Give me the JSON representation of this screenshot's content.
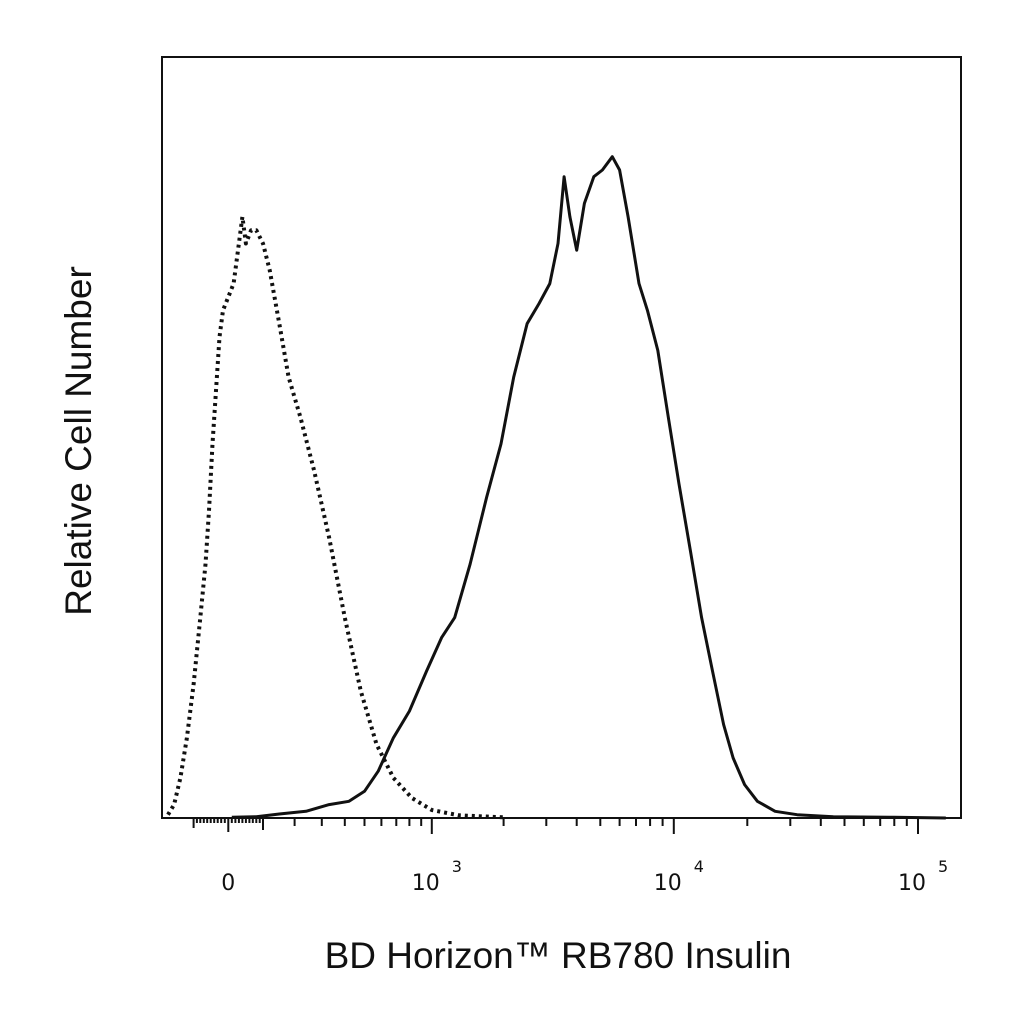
{
  "chart_data": {
    "type": "area",
    "xlabel": "BD Horizon™ RB780 Insulin",
    "ylabel": "Relative Cell Number",
    "x_scale": "biexponential",
    "xlim": [
      -200,
      150000
    ],
    "ylim": [
      0,
      1
    ],
    "grid": false,
    "tick_labels": [
      {
        "value": 0,
        "base": "0",
        "exp": ""
      },
      {
        "value": 1000,
        "base": "10",
        "exp": "3"
      },
      {
        "value": 10000,
        "base": "10",
        "exp": "4"
      },
      {
        "value": 100000,
        "base": "10",
        "exp": "5"
      }
    ],
    "series": [
      {
        "style": "dotted",
        "color": "#111111",
        "points": [
          [
            -180,
            0.005
          ],
          [
            -160,
            0.02
          ],
          [
            -140,
            0.06
          ],
          [
            -120,
            0.12
          ],
          [
            -100,
            0.2
          ],
          [
            -80,
            0.3
          ],
          [
            -65,
            0.38
          ],
          [
            -55,
            0.46
          ],
          [
            -45,
            0.56
          ],
          [
            -35,
            0.64
          ],
          [
            -25,
            0.72
          ],
          [
            -15,
            0.76
          ],
          [
            0,
            0.78
          ],
          [
            15,
            0.8
          ],
          [
            30,
            0.86
          ],
          [
            40,
            0.9
          ],
          [
            50,
            0.86
          ],
          [
            65,
            0.88
          ],
          [
            80,
            0.88
          ],
          [
            100,
            0.86
          ],
          [
            120,
            0.82
          ],
          [
            150,
            0.74
          ],
          [
            180,
            0.66
          ],
          [
            220,
            0.6
          ],
          [
            270,
            0.52
          ],
          [
            330,
            0.42
          ],
          [
            400,
            0.3
          ],
          [
            480,
            0.19
          ],
          [
            570,
            0.11
          ],
          [
            680,
            0.06
          ],
          [
            820,
            0.03
          ],
          [
            1000,
            0.012
          ],
          [
            1300,
            0.004
          ],
          [
            2000,
            0.001
          ]
        ]
      },
      {
        "style": "solid",
        "color": "#111111",
        "points": [
          [
            10,
            0.001
          ],
          [
            80,
            0.002
          ],
          [
            150,
            0.006
          ],
          [
            240,
            0.01
          ],
          [
            330,
            0.02
          ],
          [
            420,
            0.025
          ],
          [
            500,
            0.04
          ],
          [
            580,
            0.07
          ],
          [
            680,
            0.12
          ],
          [
            800,
            0.16
          ],
          [
            950,
            0.22
          ],
          [
            1100,
            0.27
          ],
          [
            1250,
            0.3
          ],
          [
            1450,
            0.38
          ],
          [
            1700,
            0.48
          ],
          [
            1950,
            0.56
          ],
          [
            2200,
            0.66
          ],
          [
            2500,
            0.74
          ],
          [
            2800,
            0.77
          ],
          [
            3100,
            0.8
          ],
          [
            3350,
            0.86
          ],
          [
            3550,
            0.96
          ],
          [
            3750,
            0.9
          ],
          [
            4000,
            0.85
          ],
          [
            4300,
            0.92
          ],
          [
            4700,
            0.96
          ],
          [
            5100,
            0.97
          ],
          [
            5600,
            0.99
          ],
          [
            6000,
            0.97
          ],
          [
            6500,
            0.9
          ],
          [
            7200,
            0.8
          ],
          [
            7800,
            0.76
          ],
          [
            8600,
            0.7
          ],
          [
            9500,
            0.6
          ],
          [
            10500,
            0.5
          ],
          [
            11700,
            0.4
          ],
          [
            13000,
            0.3
          ],
          [
            14400,
            0.22
          ],
          [
            16000,
            0.14
          ],
          [
            17500,
            0.09
          ],
          [
            19500,
            0.05
          ],
          [
            22000,
            0.025
          ],
          [
            26000,
            0.01
          ],
          [
            32000,
            0.005
          ],
          [
            45000,
            0.002
          ],
          [
            80000,
            0.001
          ],
          [
            130000,
            0.0
          ]
        ]
      }
    ]
  }
}
